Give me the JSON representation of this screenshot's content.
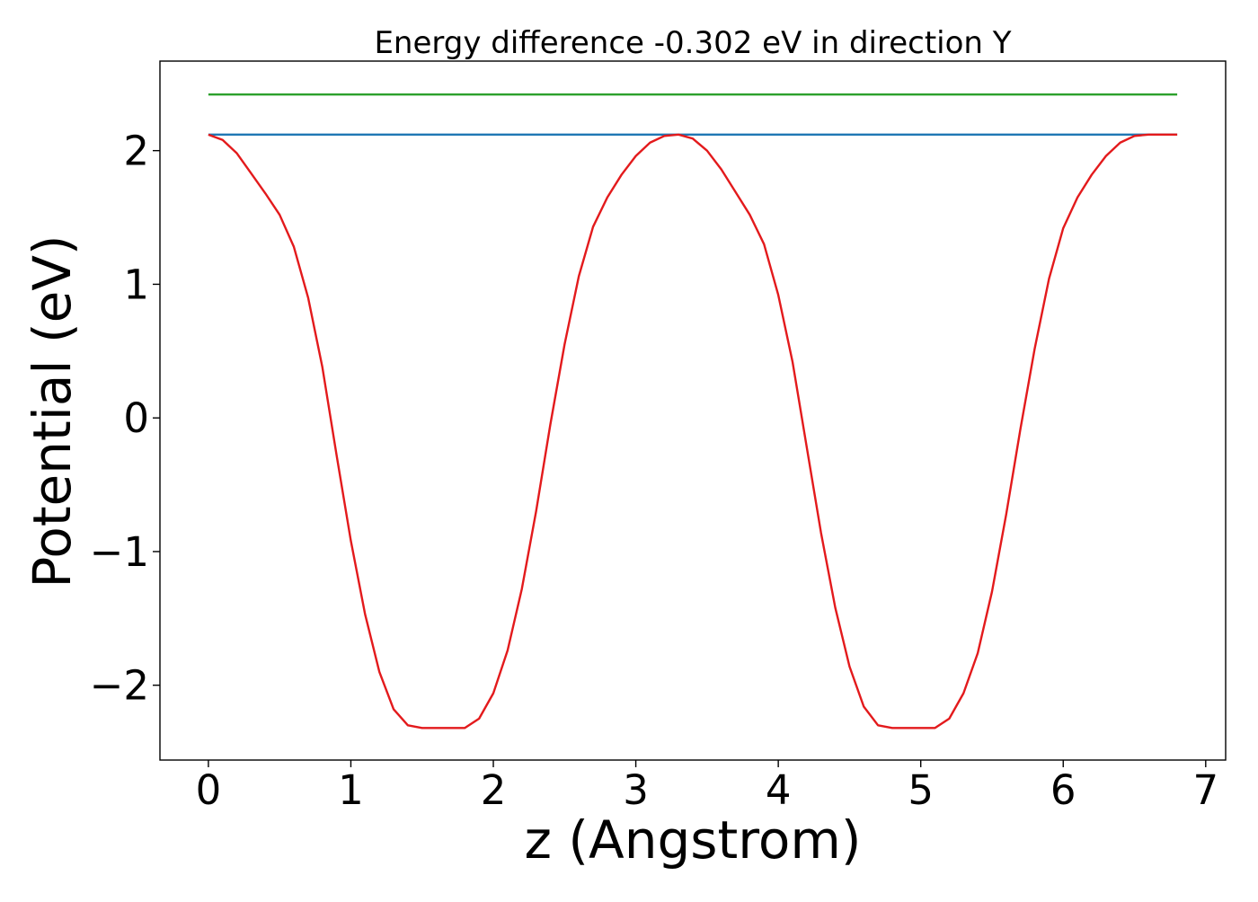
{
  "chart_data": {
    "type": "line",
    "title": "Energy difference -0.302 eV in direction Y",
    "xlabel": "z (Angstrom)",
    "ylabel": "Potential (eV)",
    "xlim": [
      -0.34,
      7.14
    ],
    "ylim": [
      -2.56,
      2.67
    ],
    "xticks": [
      0,
      1,
      2,
      3,
      4,
      5,
      6,
      7
    ],
    "xtick_labels": [
      "0",
      "1",
      "2",
      "3",
      "4",
      "5",
      "6",
      "7"
    ],
    "yticks": [
      2,
      1,
      0,
      -1,
      -2
    ],
    "ytick_labels": [
      "2",
      "1",
      "0",
      "−1",
      "−2"
    ],
    "grid": false,
    "series": [
      {
        "color": "#2ca02c",
        "x": [
          0,
          6.8
        ],
        "y": [
          2.42,
          2.42
        ]
      },
      {
        "color": "#1f77b4",
        "x": [
          0,
          6.8
        ],
        "y": [
          2.12,
          2.12
        ]
      },
      {
        "color": "#e31a1c",
        "x": [
          0.0,
          0.1,
          0.2,
          0.3,
          0.4,
          0.5,
          0.6,
          0.7,
          0.8,
          0.9,
          1.0,
          1.1,
          1.2,
          1.3,
          1.4,
          1.5,
          1.6,
          1.7,
          1.8,
          1.9,
          2.0,
          2.1,
          2.2,
          2.3,
          2.4,
          2.5,
          2.6,
          2.7,
          2.8,
          2.9,
          3.0,
          3.1,
          3.2,
          3.3,
          3.4,
          3.5,
          3.6,
          3.7,
          3.8,
          3.9,
          4.0,
          4.1,
          4.2,
          4.3,
          4.4,
          4.5,
          4.6,
          4.7,
          4.8,
          4.9,
          5.0,
          5.1,
          5.2,
          5.3,
          5.4,
          5.5,
          5.6,
          5.7,
          5.8,
          5.9,
          6.0,
          6.1,
          6.2,
          6.3,
          6.4,
          6.5,
          6.6,
          6.7,
          6.8
        ],
        "y": [
          2.12,
          2.08,
          1.98,
          1.83,
          1.68,
          1.52,
          1.28,
          0.9,
          0.38,
          -0.28,
          -0.92,
          -1.47,
          -1.9,
          -2.18,
          -2.3,
          -2.32,
          -2.32,
          -2.32,
          -2.32,
          -2.25,
          -2.06,
          -1.74,
          -1.28,
          -0.7,
          -0.05,
          0.55,
          1.06,
          1.43,
          1.65,
          1.82,
          1.96,
          2.06,
          2.11,
          2.12,
          2.09,
          2.0,
          1.86,
          1.69,
          1.52,
          1.3,
          0.92,
          0.42,
          -0.22,
          -0.86,
          -1.42,
          -1.86,
          -2.16,
          -2.3,
          -2.32,
          -2.32,
          -2.32,
          -2.32,
          -2.25,
          -2.06,
          -1.76,
          -1.3,
          -0.72,
          -0.08,
          0.52,
          1.04,
          1.42,
          1.65,
          1.82,
          1.96,
          2.06,
          2.11,
          2.12,
          2.12,
          2.12
        ]
      }
    ]
  }
}
